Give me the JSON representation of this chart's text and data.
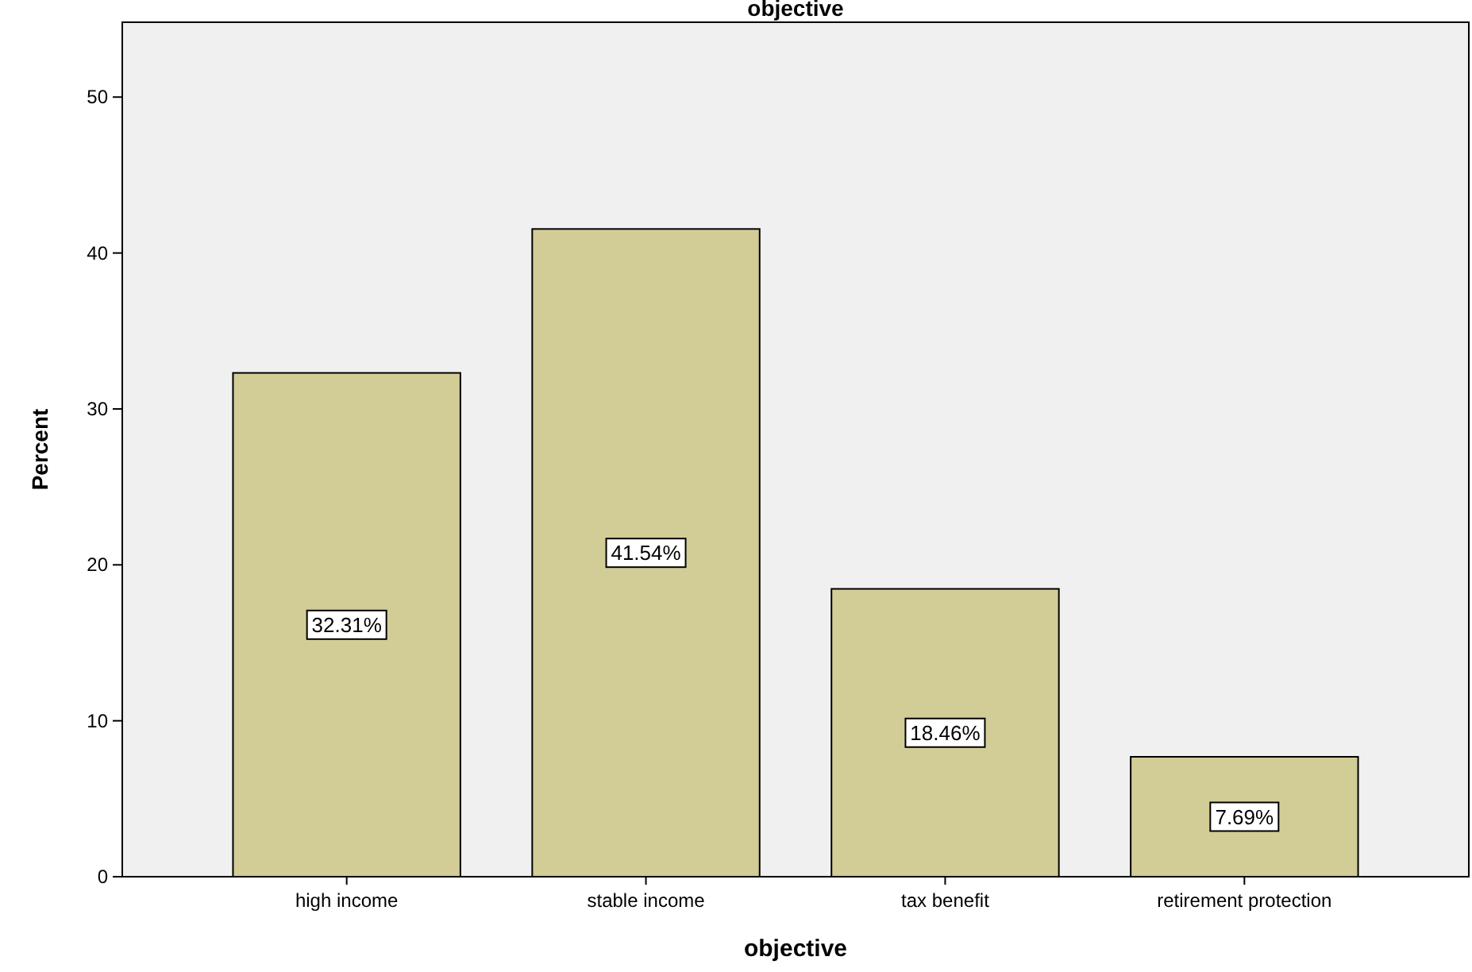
{
  "chart_data": {
    "type": "bar",
    "title": "objective",
    "xlabel": "objective",
    "ylabel": "Percent",
    "categories": [
      "high income",
      "stable income",
      "tax benefit",
      "retirement protection"
    ],
    "values": [
      32.31,
      41.54,
      18.46,
      7.69
    ],
    "value_labels": [
      "32.31%",
      "41.54%",
      "18.46%",
      "7.69%"
    ],
    "color": "#d2cd96",
    "ylim": [
      0,
      54.8
    ],
    "yticks": [
      0,
      10,
      20,
      30,
      40,
      50
    ],
    "grid": false
  }
}
